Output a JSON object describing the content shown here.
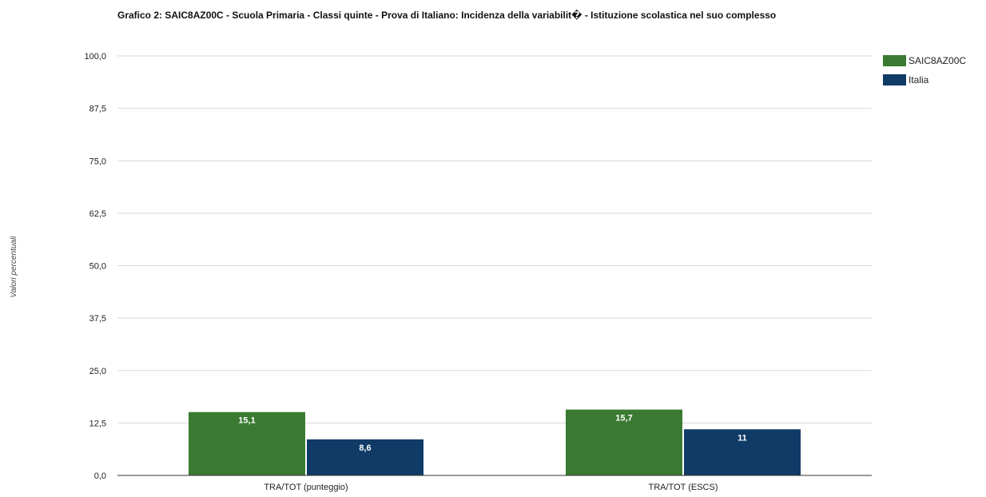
{
  "chart_data": {
    "type": "bar",
    "title": "Grafico 2: SAIC8AZ00C - Scuola Primaria - Classi quinte - Prova di Italiano: Incidenza della variabilit� - Istituzione scolastica nel suo complesso",
    "xlabel": "",
    "ylabel": "Valori percentuali",
    "ylim": [
      0,
      100
    ],
    "yticks": [
      "0,0",
      "12,5",
      "25,0",
      "37,5",
      "50,0",
      "62,5",
      "75,0",
      "87,5",
      "100,0"
    ],
    "categories": [
      "TRA/TOT (punteggio)",
      "TRA/TOT (ESCS)"
    ],
    "series": [
      {
        "name": "SAIC8AZ00C",
        "color": "#3a7a32",
        "values": [
          15.1,
          15.7
        ],
        "labels": [
          "15,1",
          "15,7"
        ]
      },
      {
        "name": "Italia",
        "color": "#0f3b66",
        "values": [
          8.6,
          11
        ],
        "labels": [
          "8,6",
          "11"
        ]
      }
    ],
    "grid": true,
    "legend_position": "top-right"
  }
}
